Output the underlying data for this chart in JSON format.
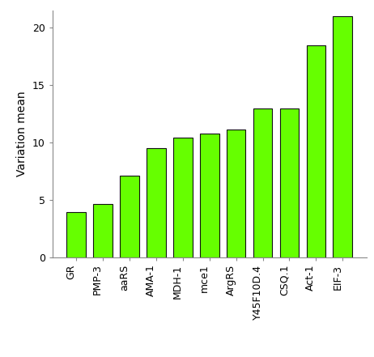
{
  "categories": [
    "GR",
    "PMP-3",
    "aaRS",
    "AMA-1",
    "MDH-1",
    "mce1",
    "ArgRS",
    "Y45F10D.4",
    "CSQ.1",
    "Act-1",
    "EIF-3"
  ],
  "values": [
    3.9,
    4.6,
    7.1,
    9.5,
    10.4,
    10.8,
    11.1,
    13.0,
    13.0,
    18.5,
    21.0
  ],
  "bar_color": "#66ff00",
  "bar_edge_color": "#111111",
  "bar_edge_width": 0.8,
  "bar_width": 0.72,
  "ylabel": "Variation mean",
  "ylim": [
    0,
    21.5
  ],
  "yticks": [
    0,
    5,
    10,
    15,
    20
  ],
  "background_color": "#ffffff",
  "ylabel_fontsize": 10,
  "tick_fontsize": 9,
  "xlabel_rotation": 90
}
